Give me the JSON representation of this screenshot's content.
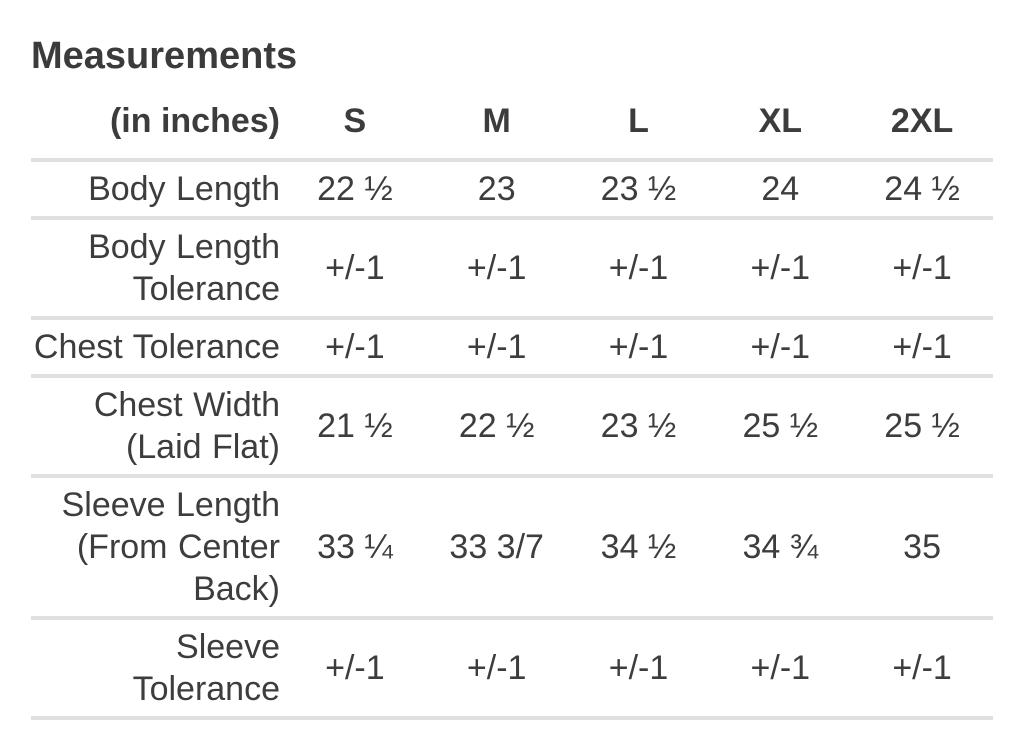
{
  "title": "Measurements",
  "colors": {
    "background": "#ffffff",
    "text": "#3d3d3d",
    "title_text": "#3b3b3b",
    "divider": "#e0e0e3"
  },
  "table": {
    "unit_label": "(in inches)",
    "size_headers": [
      "S",
      "M",
      "L",
      "XL",
      "2XL"
    ],
    "rows": [
      {
        "label": "Body Length",
        "values": [
          "22 ½",
          "23",
          "23 ½",
          "24",
          "24 ½"
        ]
      },
      {
        "label": "Body Length Tolerance",
        "values": [
          "+/-1",
          "+/-1",
          "+/-1",
          "+/-1",
          "+/-1"
        ]
      },
      {
        "label": "Chest Tolerance",
        "values": [
          "+/-1",
          "+/-1",
          "+/-1",
          "+/-1",
          "+/-1"
        ]
      },
      {
        "label": "Chest Width (Laid Flat)",
        "values": [
          "21 ½",
          "22 ½",
          "23 ½",
          "25 ½",
          "25 ½"
        ]
      },
      {
        "label": "Sleeve Length (From Center Back)",
        "values": [
          "33 ¼",
          "33 3/7",
          "34 ½",
          "34 ¾",
          "35"
        ]
      },
      {
        "label": "Sleeve Tolerance",
        "values": [
          "+/-1",
          "+/-1",
          "+/-1",
          "+/-1",
          "+/-1"
        ]
      }
    ]
  }
}
